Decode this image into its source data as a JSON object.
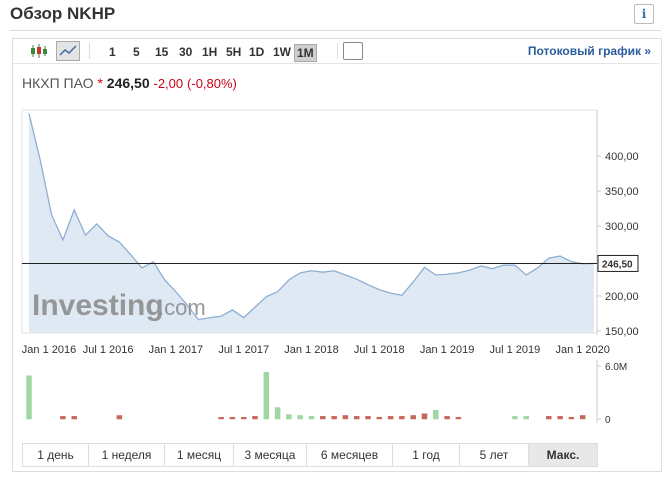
{
  "header": {
    "title": "Обзор NKHP"
  },
  "toolbar": {
    "intervals": [
      "1",
      "5",
      "15",
      "30",
      "1H",
      "5H",
      "1D",
      "1W",
      "1M"
    ],
    "active_interval": 8,
    "stream_link": "Потоковый график »"
  },
  "quote": {
    "name": "НКХП ПАО",
    "marker": "*",
    "price": "246,50",
    "change": "-2,00",
    "change_percent": "(-0,80%)"
  },
  "watermark": {
    "brand": "Investing",
    "suffix": ".com"
  },
  "ranges": {
    "buttons": [
      "1 день",
      "1 неделя",
      "1 месяц",
      "3 месяца",
      "6 месяцев",
      "1 год",
      "5 лет",
      "Макс."
    ],
    "active": 7
  },
  "chart_data": [
    {
      "type": "area",
      "color": "#8eaed3",
      "fill": "#dfe9f4",
      "categories": [
        null,
        "Jan 1 2016",
        null,
        null,
        null,
        null,
        null,
        "Jul 1 2016",
        null,
        null,
        null,
        null,
        null,
        "Jan 1 2017",
        null,
        null,
        null,
        null,
        null,
        "Jul 1 2017",
        null,
        null,
        null,
        null,
        null,
        "Jan 1 2018",
        null,
        null,
        null,
        null,
        null,
        "Jul 1 2018",
        null,
        null,
        null,
        null,
        null,
        "Jan 1 2019",
        null,
        null,
        null,
        null,
        null,
        "Jul 1 2019",
        null,
        null,
        null,
        null,
        null,
        "Jan 1 2020",
        null
      ],
      "values": [
        461,
        394,
        316,
        280,
        323,
        287,
        303,
        286,
        277,
        259,
        240,
        249,
        223,
        206,
        187,
        166,
        169,
        171,
        180,
        169,
        184,
        199,
        206,
        223,
        233,
        236,
        234,
        236,
        230,
        224,
        216,
        209,
        204,
        201,
        220,
        241,
        230,
        231,
        233,
        237,
        243,
        239,
        244,
        244,
        230,
        240,
        254,
        257,
        249,
        246,
        246.5
      ],
      "ylim": [
        147,
        466
      ],
      "yticks": [
        {
          "value": 150,
          "label": "150,00"
        },
        {
          "value": 200,
          "label": "200,00"
        },
        {
          "value": 300,
          "label": "300,00"
        },
        {
          "value": 350,
          "label": "350,00"
        },
        {
          "value": 400,
          "label": "400,00"
        }
      ],
      "reference_line": {
        "value": 246.5,
        "label": "246,50"
      }
    },
    {
      "type": "bar",
      "values": [
        4900000,
        0,
        0,
        300000,
        300000,
        0,
        0,
        0,
        400000,
        0,
        0,
        0,
        0,
        0,
        0,
        0,
        0,
        200000,
        200000,
        200000,
        300000,
        5300000,
        1300000,
        500000,
        400000,
        300000,
        300000,
        300000,
        400000,
        300000,
        300000,
        200000,
        300000,
        300000,
        400000,
        600000,
        1000000,
        300000,
        200000,
        0,
        0,
        0,
        0,
        300000,
        300000,
        0,
        300000,
        300000,
        200000,
        400000,
        0
      ],
      "colors": [
        "#9fd6a2",
        "#c7675b",
        "#c7675b",
        "#c7675b",
        "#c7675b",
        "#c7675b",
        "#c7675b",
        "#c7675b",
        "#c7675b",
        "#c7675b",
        "#c7675b",
        "#c7675b",
        "#c7675b",
        "#c7675b",
        "#c7675b",
        "#c7675b",
        "#c7675b",
        "#c7675b",
        "#c7675b",
        "#c7675b",
        "#c7675b",
        "#9fd6a2",
        "#9fd6a2",
        "#9fd6a2",
        "#9fd6a2",
        "#9fd6a2",
        "#c7675b",
        "#c7675b",
        "#c7675b",
        "#c7675b",
        "#c7675b",
        "#c7675b",
        "#c7675b",
        "#c7675b",
        "#c7675b",
        "#c7675b",
        "#9fd6a2",
        "#c7675b",
        "#c7675b",
        "#c7675b",
        "#c7675b",
        "#c7675b",
        "#c7675b",
        "#9fd6a2",
        "#9fd6a2",
        "#c7675b",
        "#c7675b",
        "#c7675b",
        "#c7675b",
        "#c7675b",
        "#c7675b"
      ],
      "ylim": [
        0,
        6000000
      ],
      "yticks": [
        {
          "value": 6000000,
          "label": "6.0M"
        },
        0
      ]
    }
  ]
}
